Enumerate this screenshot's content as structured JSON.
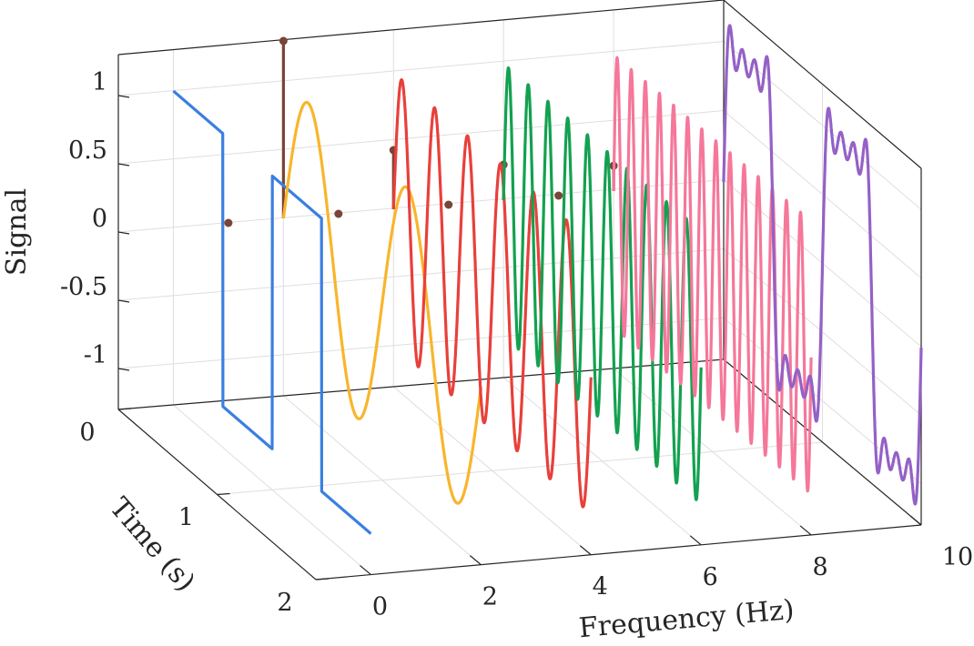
{
  "chart_data": {
    "type": "line",
    "subtype": "3d-waterfall",
    "title": "",
    "xlabel": "Frequency (Hz)",
    "ylabel": "Time (s)",
    "zlabel": "Signal",
    "xlim": [
      -1,
      10
    ],
    "ylim": [
      0,
      2
    ],
    "zlim": [
      -1.3,
      1.3
    ],
    "xticks": [
      "0",
      "2",
      "4",
      "6",
      "8",
      "10"
    ],
    "yticks": [
      "0",
      "1",
      "2"
    ],
    "zticks": [
      "1",
      "0.5",
      "0",
      "-0.5",
      "-1"
    ],
    "grid": true,
    "box": true,
    "series": [
      {
        "kind": "square",
        "frequency": 1,
        "x": 0,
        "color": "#3a7fe0",
        "time_range": [
          0,
          2
        ]
      },
      {
        "kind": "sine",
        "frequency": 1,
        "x": 2,
        "color": "#f8b52c",
        "time_range": [
          0,
          2
        ]
      },
      {
        "kind": "sine",
        "frequency": 3,
        "x": 4,
        "color": "#e8403b",
        "time_range": [
          0,
          2
        ]
      },
      {
        "kind": "sine",
        "frequency": 5,
        "x": 6,
        "color": "#13a150",
        "time_range": [
          0,
          2
        ]
      },
      {
        "kind": "sine",
        "frequency": 7,
        "x": 8,
        "color": "#f5779a",
        "time_range": [
          0,
          2
        ]
      },
      {
        "kind": "square-partial-sum",
        "frequency": 1,
        "harmonics": [
          1,
          3,
          5,
          7
        ],
        "x": 10,
        "color": "#9461c6",
        "time_range": [
          0,
          2
        ]
      }
    ],
    "stems": {
      "color": "#7a4436",
      "points": [
        {
          "x": 2,
          "time": 0,
          "value": 1.3
        },
        {
          "x": 4,
          "time": 0,
          "value": 0.4333
        },
        {
          "x": 6,
          "time": 0,
          "value": 0.26
        },
        {
          "x": 8,
          "time": 0,
          "value": 0.1857
        }
      ],
      "zero_markers": [
        {
          "x": 1,
          "time": 0
        },
        {
          "x": 3,
          "time": 0
        },
        {
          "x": 5,
          "time": 0
        },
        {
          "x": 7,
          "time": 0
        }
      ]
    }
  }
}
